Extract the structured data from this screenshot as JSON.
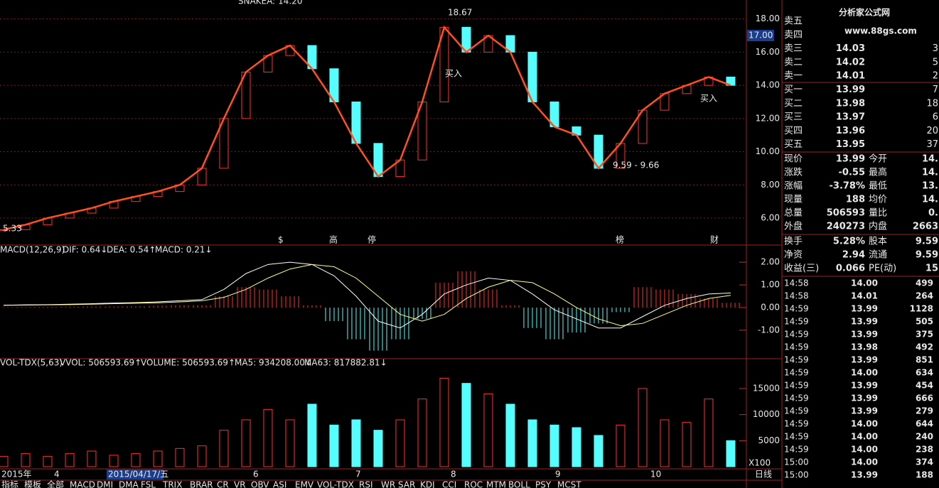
{
  "header": {
    "indicator": "SNAKEA: 14.20"
  },
  "price_panel": {
    "type": "candlestick",
    "close": [
      5.3,
      5.6,
      6.0,
      6.3,
      6.6,
      7.0,
      7.3,
      7.6,
      8.0,
      9.0,
      12.0,
      14.8,
      15.8,
      16.4,
      15.0,
      13.0,
      10.5,
      8.5,
      9.5,
      13.0,
      17.5,
      16.0,
      17.0,
      16.0,
      13.0,
      11.5,
      11.0,
      9.0,
      10.5,
      12.5,
      13.5,
      14.0,
      14.5,
      14.0
    ],
    "ylim": [
      4.8,
      18.8
    ],
    "yticks": [
      {
        "value": 18,
        "label": "18.00"
      },
      {
        "value": 16,
        "label": "16.00"
      },
      {
        "value": 14,
        "label": "14.00"
      },
      {
        "value": 12,
        "label": "12.00"
      },
      {
        "value": 10,
        "label": "10.00"
      },
      {
        "value": 8,
        "label": "8.00"
      },
      {
        "value": 6,
        "label": "6.00"
      }
    ],
    "current_marker": {
      "value": 17,
      "label": "17.00"
    },
    "annotations": [
      "18.67",
      "买入",
      "买入",
      "9.59 - 9.66",
      "5.33"
    ],
    "events": [
      "$",
      "高",
      "停",
      "榜",
      "财"
    ]
  },
  "macd_panel": {
    "type": "macd",
    "legend": [
      "MACD(12,26,9)",
      "DIF: 0.64↓",
      "DEA: 0.54↑",
      "MACD: 0.21↓"
    ],
    "dif": [
      0.1,
      0.12,
      0.13,
      0.15,
      0.17,
      0.2,
      0.22,
      0.25,
      0.3,
      0.35,
      0.8,
      1.5,
      1.9,
      2.0,
      1.9,
      1.4,
      0.5,
      -0.6,
      -0.9,
      -0.3,
      0.6,
      1.0,
      1.3,
      1.2,
      0.6,
      -0.1,
      -0.5,
      -0.9,
      -0.9,
      -0.4,
      0.1,
      0.4,
      0.6,
      0.64
    ],
    "dea": [
      0.1,
      0.11,
      0.12,
      0.13,
      0.15,
      0.17,
      0.19,
      0.21,
      0.25,
      0.3,
      0.45,
      0.8,
      1.3,
      1.7,
      1.9,
      1.8,
      1.3,
      0.5,
      -0.3,
      -0.6,
      -0.3,
      0.4,
      0.9,
      1.2,
      1.1,
      0.6,
      0.0,
      -0.5,
      -0.8,
      -0.7,
      -0.3,
      0.1,
      0.4,
      0.54
    ],
    "hist": [
      0.02,
      0.03,
      0.03,
      0.04,
      0.05,
      0.05,
      0.06,
      0.08,
      0.1,
      0.1,
      0.5,
      0.9,
      0.8,
      0.5,
      0.1,
      -0.6,
      -1.4,
      -1.9,
      -1.4,
      -0.5,
      1.1,
      1.6,
      0.8,
      0.1,
      -0.9,
      -1.4,
      -1.1,
      -0.7,
      -0.2,
      0.9,
      0.8,
      0.6,
      0.4,
      0.21
    ],
    "ylim": [
      -2.1,
      2.6
    ],
    "yticks": [
      {
        "value": 2,
        "label": "2.00"
      },
      {
        "value": 1,
        "label": "1.00"
      },
      {
        "value": 0,
        "label": "0.00"
      },
      {
        "value": -1,
        "label": "-1.00"
      }
    ]
  },
  "volume_panel": {
    "type": "bar",
    "legend": [
      "VOL-TDX(5,63)",
      "VVOL: 506593.69↑",
      "VOLUME: 506593.69↑",
      "MA5: 934208.00↓",
      "MA63: 817882.81↓"
    ],
    "values": [
      2000,
      2500,
      2000,
      2500,
      3000,
      2200,
      2500,
      3000,
      3500,
      4000,
      7000,
      9000,
      11000,
      9000,
      12000,
      8000,
      9000,
      7000,
      9000,
      13000,
      17000,
      16000,
      14000,
      12000,
      9000,
      8000,
      7500,
      6000,
      8000,
      15000,
      9000,
      8500,
      13000,
      5000
    ],
    "ylim": [
      0,
      19500
    ],
    "yticks": [
      15000,
      10000,
      5000
    ],
    "unit": "X100"
  },
  "x_axis": [
    "2015年",
    "4",
    "2015/04/17/五",
    "6",
    "7",
    "8",
    "9",
    "10"
  ],
  "period": "日线",
  "tabs": [
    "指标",
    "模板",
    "全部",
    "MACD",
    "DMI",
    "DMA",
    "FSL",
    "TRIX",
    "BRAR",
    "CR",
    "VR",
    "OBV",
    "ASI",
    "EMV",
    "VOL-TDX",
    "RSI",
    "WR",
    "SAR",
    "KDJ",
    "CCI",
    "ROC",
    "MTM",
    "BOLL",
    "PSY",
    "MCST"
  ],
  "logo": {
    "name": "分析家公式网",
    "url": "www.88gs.com"
  },
  "order_book": [
    [
      "卖五",
      "",
      ""
    ],
    [
      "卖四",
      "",
      ""
    ],
    [
      "卖三",
      "14.03",
      "3"
    ],
    [
      "卖二",
      "14.02",
      "5"
    ],
    [
      "卖一",
      "14.01",
      "2"
    ],
    [
      "买一",
      "13.99",
      "7"
    ],
    [
      "买二",
      "13.98",
      "18"
    ],
    [
      "买三",
      "13.97",
      "6"
    ],
    [
      "买四",
      "13.96",
      "20"
    ],
    [
      "买五",
      "13.95",
      "37"
    ]
  ],
  "stats": [
    [
      "现价",
      "13.99",
      "今开",
      "14."
    ],
    [
      "涨跌",
      "-0.55",
      "最高",
      "14."
    ],
    [
      "涨幅",
      "-3.78%",
      "最低",
      "13."
    ],
    [
      "现量",
      "188",
      "均价",
      "14."
    ],
    [
      "总量",
      "506593",
      "量比",
      "0."
    ],
    [
      "外盘",
      "240273",
      "内盘",
      "2663"
    ],
    [
      "换手",
      "5.28%",
      "股本",
      "9.59"
    ],
    [
      "净资",
      "2.94",
      "流通",
      "9.59"
    ],
    [
      "收益(三)",
      "0.066",
      "PE(动)",
      "15"
    ]
  ],
  "stat_colors": [
    [
      "#e8e8e8",
      "#e8e8e8"
    ],
    [
      "#33dd33",
      "#e8e8e8"
    ],
    [
      "#33dd33",
      "#e8e8e8"
    ],
    [
      "#ffff44",
      "#e8e8e8"
    ],
    [
      "#ffff44",
      "#e8e8e8"
    ],
    [
      "#ff4444",
      "#33dd33"
    ],
    [
      "#e8e8e8",
      "#e8e8e8"
    ],
    [
      "#e8e8e8",
      "#e8e8e8"
    ],
    [
      "#e8e8e8",
      "#e8e8e8"
    ]
  ],
  "ticks": [
    [
      "14:58",
      "14.00",
      "499"
    ],
    [
      "14:58",
      "14.01",
      "264"
    ],
    [
      "14:59",
      "13.99",
      "1128"
    ],
    [
      "14:59",
      "13.99",
      "505"
    ],
    [
      "14:59",
      "13.99",
      "375"
    ],
    [
      "14:59",
      "13.98",
      "492"
    ],
    [
      "14:59",
      "13.99",
      "851"
    ],
    [
      "14:59",
      "14.00",
      "634"
    ],
    [
      "14:59",
      "13.99",
      "454"
    ],
    [
      "14:59",
      "13.99",
      "666"
    ],
    [
      "14:59",
      "13.99",
      "279"
    ],
    [
      "14:59",
      "14.00",
      "644"
    ],
    [
      "14:59",
      "14.00",
      "240"
    ],
    [
      "14:59",
      "14.00",
      "238"
    ],
    [
      "15:00",
      "14.00",
      "374"
    ],
    [
      "15:00",
      "13.99",
      "188"
    ]
  ],
  "tick_colors": [
    "#ffff44",
    "#ffff44",
    "#ff44ff",
    "#ff44ff",
    "#ffff44",
    "#ffff44",
    "#ff44ff",
    "#ff44ff",
    "#ffff44",
    "#ff44ff",
    "#ffff44",
    "#ff44ff",
    "#ffff44",
    "#ffff44",
    "#ffff44",
    "#ffff44"
  ]
}
